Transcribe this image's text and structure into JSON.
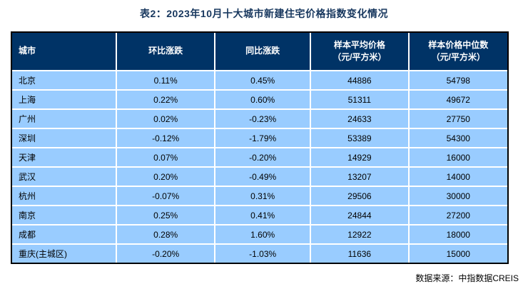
{
  "page": {
    "title": "表2：2023年10月十大城市新建住宅价格指数变化情况"
  },
  "colors": {
    "title_text": "#17375E",
    "header_bg": "#003366",
    "header_text": "#FFFFFF",
    "row_bg": "#99CCFF",
    "row_text": "#000000",
    "outer_border": "#000000",
    "cell_divider": "#FFFFFF"
  },
  "table": {
    "headers": [
      "城市",
      "环比涨跌",
      "同比涨跌",
      "样本平均价格\n（元/平方米）",
      "样本价格中位数\n（元/平方米）"
    ],
    "rows": [
      {
        "city": "北京",
        "mom": "0.11%",
        "yoy": "0.45%",
        "avg_price": "44886",
        "median_price": "54798"
      },
      {
        "city": "上海",
        "mom": "0.22%",
        "yoy": "0.60%",
        "avg_price": "51311",
        "median_price": "49672"
      },
      {
        "city": "广州",
        "mom": "0.02%",
        "yoy": "-0.23%",
        "avg_price": "24633",
        "median_price": "27750"
      },
      {
        "city": "深圳",
        "mom": "-0.12%",
        "yoy": "-1.79%",
        "avg_price": "53389",
        "median_price": "54300"
      },
      {
        "city": "天津",
        "mom": "0.07%",
        "yoy": "-0.20%",
        "avg_price": "14929",
        "median_price": "16000"
      },
      {
        "city": "武汉",
        "mom": "0.20%",
        "yoy": "-0.49%",
        "avg_price": "13207",
        "median_price": "14000"
      },
      {
        "city": "杭州",
        "mom": "-0.07%",
        "yoy": "0.31%",
        "avg_price": "29506",
        "median_price": "30000"
      },
      {
        "city": "南京",
        "mom": "0.25%",
        "yoy": "0.41%",
        "avg_price": "24844",
        "median_price": "27200"
      },
      {
        "city": "成都",
        "mom": "0.28%",
        "yoy": "1.60%",
        "avg_price": "12922",
        "median_price": "18000"
      },
      {
        "city": "重庆(主城区)",
        "mom": "-0.20%",
        "yoy": "-1.03%",
        "avg_price": "11636",
        "median_price": "15000"
      }
    ]
  },
  "footer": {
    "source": "数据来源：中指数据CREIS"
  },
  "chart_data": {
    "type": "table",
    "title": "表2：2023年10月十大城市新建住宅价格指数变化情况",
    "columns": [
      "城市",
      "环比涨跌",
      "同比涨跌",
      "样本平均价格（元/平方米）",
      "样本价格中位数（元/平方米）"
    ],
    "rows": [
      [
        "北京",
        "0.11%",
        "0.45%",
        44886,
        54798
      ],
      [
        "上海",
        "0.22%",
        "0.60%",
        51311,
        49672
      ],
      [
        "广州",
        "0.02%",
        "-0.23%",
        24633,
        27750
      ],
      [
        "深圳",
        "-0.12%",
        "-1.79%",
        53389,
        54300
      ],
      [
        "天津",
        "0.07%",
        "-0.20%",
        14929,
        16000
      ],
      [
        "武汉",
        "0.20%",
        "-0.49%",
        13207,
        14000
      ],
      [
        "杭州",
        "-0.07%",
        "0.31%",
        29506,
        30000
      ],
      [
        "南京",
        "0.25%",
        "0.41%",
        24844,
        27200
      ],
      [
        "成都",
        "0.28%",
        "1.60%",
        12922,
        18000
      ],
      [
        "重庆(主城区)",
        "-0.20%",
        "-1.03%",
        11636,
        15000
      ]
    ],
    "source": "数据来源：中指数据CREIS"
  }
}
